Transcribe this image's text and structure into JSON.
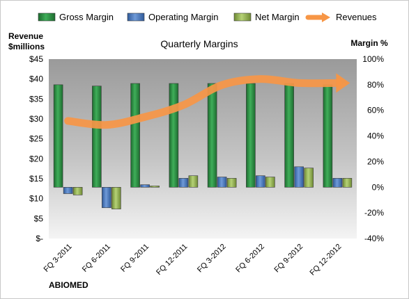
{
  "chart_data": {
    "type": "bar",
    "title": "Quarterly Margins",
    "company": "ABIOMED",
    "left_axis": {
      "label": [
        "Revenue",
        "$millions"
      ],
      "range": [
        0,
        45
      ],
      "ticks": [
        0,
        5,
        10,
        15,
        20,
        25,
        30,
        35,
        40,
        45
      ],
      "tick_labels": [
        "$-",
        "$5",
        "$10",
        "$15",
        "$20",
        "$25",
        "$30",
        "$35",
        "$40",
        "$45"
      ]
    },
    "right_axis": {
      "label": "Margin %",
      "range": [
        -40,
        100
      ],
      "ticks": [
        -40,
        -20,
        0,
        20,
        40,
        60,
        80,
        100
      ],
      "tick_labels": [
        "-40%",
        "-20%",
        "0%",
        "20%",
        "40%",
        "60%",
        "80%",
        "100%"
      ]
    },
    "categories": [
      "FQ 3-2011",
      "FQ 6-2011",
      "FQ 9-2011",
      "FQ 12-2011",
      "FQ 3-2012",
      "FQ 6-2012",
      "FQ 9-2012",
      "FQ 12-2012"
    ],
    "series": [
      {
        "name": "Gross Margin",
        "axis": "right",
        "kind": "bar",
        "color": "#2f8f45",
        "values": [
          80,
          79,
          81,
          81,
          81,
          81,
          81,
          80
        ]
      },
      {
        "name": "Operating Margin",
        "axis": "right",
        "kind": "bar",
        "color": "#4f7bbf",
        "values": [
          -5,
          -16,
          2,
          7,
          8,
          9,
          16,
          7
        ]
      },
      {
        "name": "Net Margin",
        "axis": "right",
        "kind": "bar",
        "color": "#9bbb59",
        "values": [
          -6,
          -17,
          1,
          9,
          7,
          8,
          15,
          7
        ]
      },
      {
        "name": "Revenues",
        "axis": "left",
        "kind": "line",
        "color": "#f79646",
        "values": [
          29.5,
          28.5,
          30.5,
          33.5,
          38.5,
          40.0,
          39.0,
          39.0
        ]
      }
    ],
    "grid": false,
    "legend_placement": "top"
  }
}
